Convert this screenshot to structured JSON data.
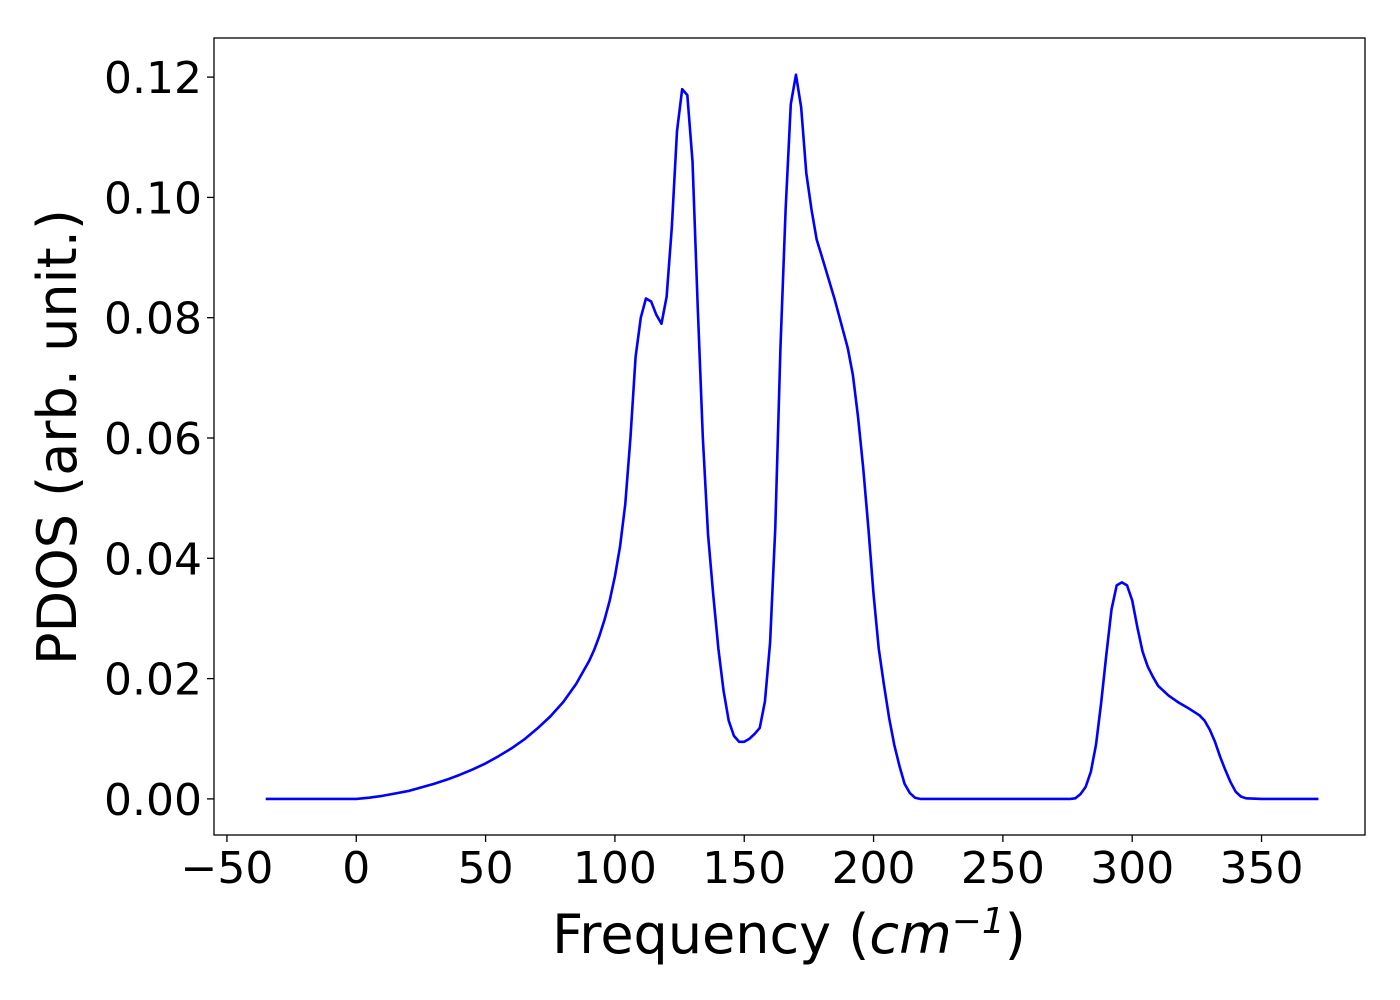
{
  "chart_data": {
    "type": "line",
    "title": "",
    "xlabel": "Frequency (cm⁻¹)",
    "xlabel_parts": {
      "prefix": "Frequency (",
      "unit_base": "cm",
      "unit_exp": "−1",
      "suffix": ")"
    },
    "ylabel": "PDOS (arb. unit.)",
    "xlim": [
      -55,
      390
    ],
    "ylim": [
      -0.006,
      0.1265
    ],
    "xticks": [
      -50,
      0,
      50,
      100,
      150,
      200,
      250,
      300,
      350
    ],
    "xtick_labels": [
      "−50",
      "0",
      "50",
      "100",
      "150",
      "200",
      "250",
      "300",
      "350"
    ],
    "yticks": [
      0.0,
      0.02,
      0.04,
      0.06,
      0.08,
      0.1,
      0.12
    ],
    "ytick_labels": [
      "0.00",
      "0.02",
      "0.04",
      "0.06",
      "0.08",
      "0.10",
      "0.12"
    ],
    "grid": false,
    "legend": "none",
    "colors": {
      "line": "#0000ff",
      "axes": "#000000",
      "background": "#ffffff"
    },
    "series": [
      {
        "x": [
          -35,
          -20,
          -10,
          0,
          5,
          10,
          15,
          20,
          25,
          30,
          35,
          40,
          45,
          50,
          55,
          60,
          65,
          70,
          75,
          80,
          85,
          90,
          92,
          94,
          96,
          98,
          100,
          102,
          104,
          106,
          108,
          110,
          112,
          114,
          116,
          118,
          120,
          122,
          124,
          126,
          128,
          130,
          132,
          134,
          136,
          138,
          140,
          142,
          144,
          146,
          148,
          150,
          152,
          154,
          156,
          158,
          160,
          162,
          164,
          166,
          168,
          170,
          172,
          174,
          176,
          178,
          180,
          185,
          190,
          192,
          194,
          196,
          198,
          200,
          202,
          204,
          206,
          208,
          210,
          212,
          214,
          216,
          218,
          220,
          225,
          240,
          260,
          276,
          278,
          280,
          282,
          284,
          286,
          288,
          290,
          292,
          294,
          296,
          298,
          300,
          302,
          304,
          306,
          308,
          310,
          314,
          318,
          322,
          326,
          328,
          330,
          332,
          334,
          336,
          338,
          340,
          342,
          344,
          350,
          372
        ],
        "y": [
          0.0,
          0.0,
          0.0,
          0.0,
          0.0002,
          0.0005,
          0.0009,
          0.0013,
          0.0019,
          0.0025,
          0.0032,
          0.004,
          0.0049,
          0.0059,
          0.0071,
          0.0084,
          0.0099,
          0.0117,
          0.0137,
          0.0161,
          0.0191,
          0.0229,
          0.0248,
          0.0271,
          0.0298,
          0.033,
          0.037,
          0.042,
          0.049,
          0.06,
          0.0735,
          0.08,
          0.0832,
          0.0827,
          0.0805,
          0.079,
          0.0835,
          0.095,
          0.111,
          0.118,
          0.117,
          0.106,
          0.082,
          0.06,
          0.044,
          0.034,
          0.025,
          0.018,
          0.013,
          0.0105,
          0.0095,
          0.0095,
          0.01,
          0.0108,
          0.0118,
          0.0162,
          0.026,
          0.045,
          0.075,
          0.098,
          0.1155,
          0.1204,
          0.115,
          0.104,
          0.098,
          0.093,
          0.0902,
          0.083,
          0.075,
          0.0705,
          0.0635,
          0.055,
          0.045,
          0.034,
          0.025,
          0.019,
          0.0135,
          0.009,
          0.0055,
          0.0025,
          0.001,
          0.0002,
          0.0,
          0.0,
          0.0,
          0.0,
          0.0,
          0.0,
          0.0001,
          0.0008,
          0.002,
          0.0045,
          0.009,
          0.016,
          0.024,
          0.0315,
          0.0355,
          0.036,
          0.0355,
          0.033,
          0.0285,
          0.0245,
          0.022,
          0.0203,
          0.0188,
          0.0172,
          0.016,
          0.015,
          0.0139,
          0.013,
          0.0115,
          0.0095,
          0.007,
          0.0048,
          0.0028,
          0.0012,
          0.0004,
          0.0001,
          0.0,
          0.0
        ]
      }
    ]
  }
}
